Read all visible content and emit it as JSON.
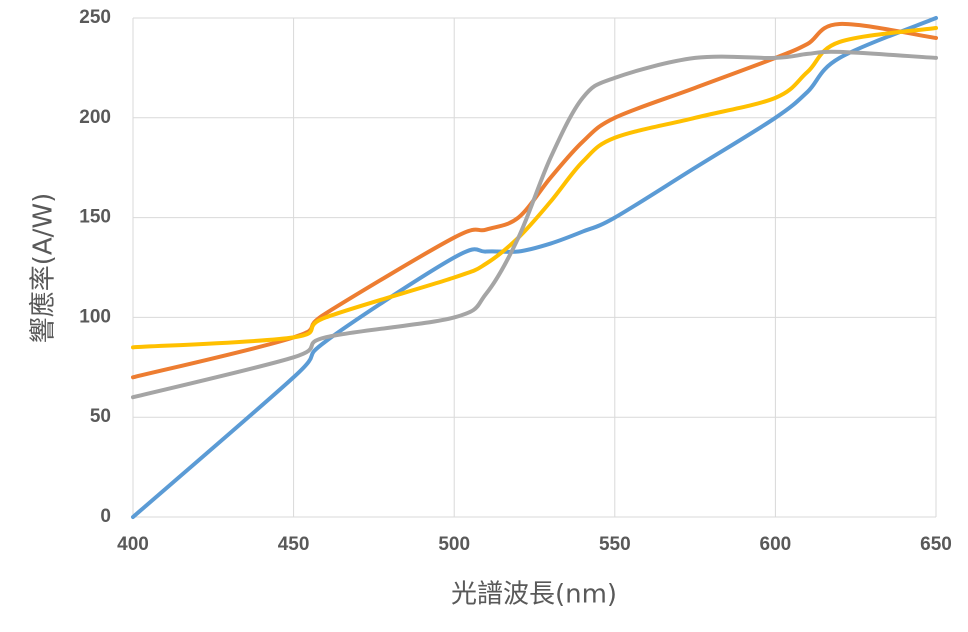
{
  "chart_data": {
    "type": "line",
    "x_label": "光譜波長(nm)",
    "y_label": "響應率(A/W)",
    "x": [
      400,
      450,
      460,
      500,
      510,
      520,
      530,
      540,
      550,
      575,
      600,
      610,
      620,
      650
    ],
    "series": [
      {
        "color": "#5b9bd5",
        "values": [
          0,
          70,
          88,
          130,
          133,
          133,
          137,
          143,
          150,
          175,
          200,
          213,
          230,
          250
        ]
      },
      {
        "color": "#ed7d31",
        "values": [
          70,
          90,
          102,
          140,
          144,
          150,
          170,
          188,
          200,
          215,
          230,
          237,
          247,
          240
        ]
      },
      {
        "color": "#ffc000",
        "values": [
          85,
          90,
          100,
          120,
          127,
          140,
          158,
          178,
          190,
          200,
          210,
          223,
          238,
          245
        ]
      },
      {
        "color": "#a5a5a5",
        "values": [
          60,
          80,
          90,
          100,
          112,
          140,
          180,
          210,
          220,
          230,
          230,
          232,
          233,
          230
        ]
      }
    ],
    "xlim": [
      400,
      650
    ],
    "xticks": [
      400,
      450,
      500,
      550,
      600,
      650
    ],
    "ylim": [
      0,
      250
    ],
    "yticks": [
      0,
      50,
      100,
      150,
      200,
      250
    ],
    "grid": true
  }
}
